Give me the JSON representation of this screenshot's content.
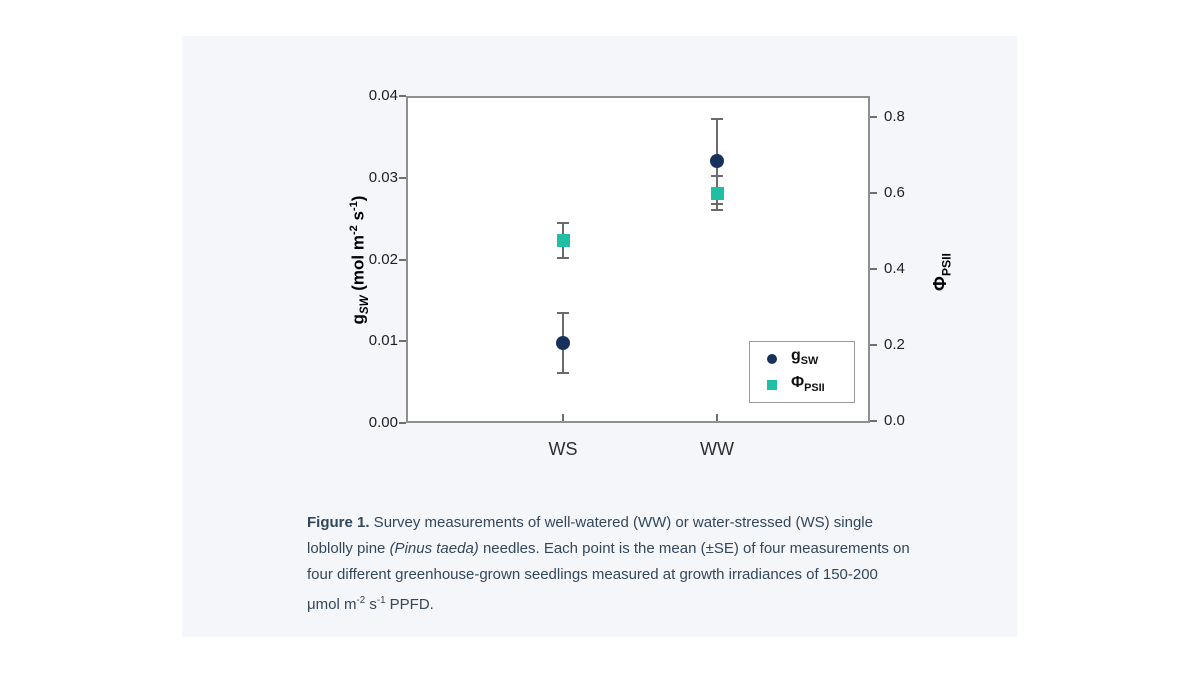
{
  "page": {
    "background": "#ffffff",
    "card_background": "#f4f6f9"
  },
  "chart_data": {
    "type": "scatter",
    "title": "",
    "categories": [
      "WS",
      "WW"
    ],
    "series": [
      {
        "name": "gSW",
        "label_main": "g",
        "label_sub": "SW",
        "axis": "left",
        "marker": "circle",
        "color": "#17315c",
        "values": [
          0.0098,
          0.032
        ],
        "se": [
          0.0037,
          0.0052
        ]
      },
      {
        "name": "PhiPSII",
        "label_main": "Φ",
        "label_sub": "PSII",
        "axis": "right",
        "marker": "square",
        "color": "#1fbfa5",
        "values": [
          0.475,
          0.6
        ],
        "se": [
          0.046,
          0.046
        ]
      }
    ],
    "axes": {
      "left": {
        "min": 0,
        "max": 0.04,
        "ticks": [
          "0.04",
          "0.03",
          "0.02",
          "0.01",
          "0.00"
        ],
        "label_parts": {
          "sym": "g",
          "sub": "SW",
          "r1": " (mol m",
          "s1": "-2",
          "r2": " s",
          "s2": "-1",
          "r3": ")"
        }
      },
      "right": {
        "min": 0,
        "max": 0.8,
        "ticks": [
          "0.8",
          "0.6",
          "0.4",
          "0.2",
          "0.0"
        ],
        "label_parts": {
          "sym": "Φ",
          "sub": "PSII"
        }
      }
    },
    "x_tick_labels": [
      "WS",
      "WW"
    ],
    "legend": {
      "position": "lower-right"
    },
    "error_bar_color": "#6a6a6a",
    "frame_color": "#8f8f8f",
    "grid": "off"
  },
  "caption": {
    "line1_bold": "Figure 1.",
    "line1_rest": " Survey measurements of well-watered (WW) or water-stressed (WS) single",
    "line2_a": "loblolly pine ",
    "line2_italic": "(Pinus taeda)",
    "line2_b": " needles. Each point is the mean (±SE) of four measurements on",
    "line3": "four different greenhouse-grown seedlings measured at growth irradiances of 150-200",
    "line4_a": "μmol m",
    "line4_sup1": "-2",
    "line4_b": " s",
    "line4_sup2": "-1",
    "line4_c": " PPFD."
  }
}
